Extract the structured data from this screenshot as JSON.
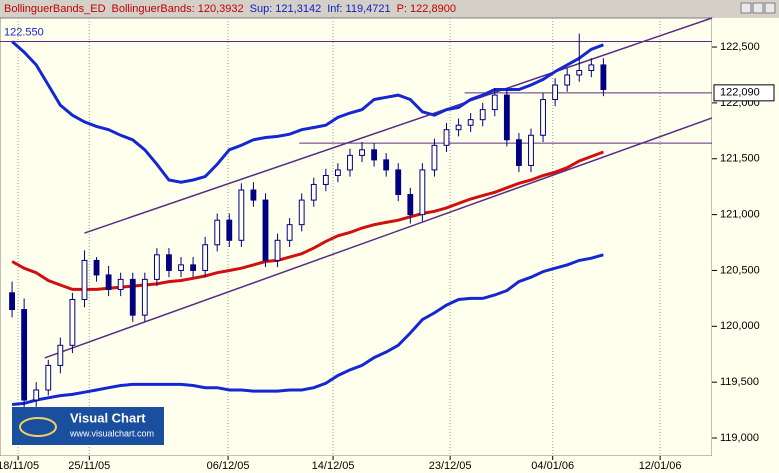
{
  "chart_data": {
    "type": "candlestick",
    "header": [
      {
        "text": "BollinguerBands_ED",
        "color": "#c00000"
      },
      {
        "text": "BollinguerBands: 120,3932",
        "color": "#c00000"
      },
      {
        "text": "Sup: 121,3142",
        "color": "#1020c0"
      },
      {
        "text": "Inf: 119,4721",
        "color": "#1020c0"
      },
      {
        "text": "P: 122,8900",
        "color": "#c00000"
      }
    ],
    "watermark": {
      "title": "Visual Chart",
      "url": "www.visualchart.com"
    },
    "x": [
      0,
      1,
      2,
      3,
      4,
      5,
      6,
      7,
      8,
      9,
      10,
      11,
      12,
      13,
      14,
      15,
      16,
      17,
      18,
      19,
      20,
      21,
      22,
      23,
      24,
      25,
      26,
      27,
      28,
      29,
      30,
      31,
      32,
      33,
      34,
      35,
      36,
      37,
      38,
      39,
      40,
      41,
      42,
      43,
      44,
      45,
      46,
      47,
      48,
      49
    ],
    "open": [
      120300,
      120150,
      119340,
      119430,
      119650,
      119830,
      120240,
      120590,
      120460,
      120330,
      120420,
      120100,
      120420,
      120640,
      120500,
      120550,
      120500,
      120730,
      120950,
      120770,
      121220,
      121130,
      120590,
      120770,
      120910,
      121130,
      121270,
      121350,
      121400,
      121530,
      121580,
      121490,
      121400,
      121180,
      121000,
      121400,
      121620,
      121760,
      121800,
      121850,
      121940,
      122070,
      121670,
      121440,
      121710,
      122030,
      122160,
      122250,
      122290,
      122340
    ],
    "high": [
      120400,
      120250,
      119500,
      119700,
      119900,
      120300,
      120680,
      120620,
      120540,
      120480,
      120480,
      120480,
      120700,
      120700,
      120620,
      120620,
      120800,
      121010,
      121010,
      121280,
      121290,
      121190,
      120830,
      120970,
      121190,
      121330,
      121410,
      121460,
      121590,
      121650,
      121640,
      121550,
      121460,
      121240,
      121460,
      121680,
      121820,
      121860,
      121910,
      122000,
      122130,
      122130,
      121730,
      121770,
      122090,
      122220,
      122310,
      122620,
      122400,
      122400
    ],
    "low": [
      120080,
      119270,
      119280,
      119380,
      119580,
      119760,
      120170,
      120400,
      120270,
      120270,
      120040,
      120040,
      120360,
      120440,
      120440,
      120440,
      120440,
      120670,
      120710,
      120710,
      121070,
      120530,
      120530,
      120710,
      120850,
      121070,
      121210,
      121290,
      121340,
      121470,
      121430,
      121340,
      121120,
      120920,
      120940,
      121340,
      121560,
      121700,
      121740,
      121790,
      121880,
      121610,
      121380,
      121380,
      121650,
      121970,
      122100,
      122190,
      122230,
      122060
    ],
    "close": [
      120150,
      119340,
      119430,
      119650,
      119830,
      120240,
      120590,
      120460,
      120330,
      120420,
      120100,
      120420,
      120640,
      120500,
      120550,
      120500,
      120730,
      120950,
      120770,
      121220,
      121130,
      120590,
      120770,
      120910,
      121130,
      121270,
      121350,
      121400,
      121530,
      121580,
      121490,
      121400,
      121180,
      121000,
      121400,
      121620,
      121760,
      121800,
      121850,
      121940,
      122070,
      121670,
      121440,
      121710,
      122030,
      122160,
      122250,
      122290,
      122340,
      122120
    ],
    "candle_color": "#000080",
    "overlays": [
      {
        "color": "#1428d2",
        "values": [
          122550,
          122455,
          122340,
          122160,
          121980,
          121890,
          121830,
          121790,
          121760,
          121710,
          121670,
          121580,
          121450,
          121310,
          121290,
          121310,
          121340,
          121450,
          121580,
          121620,
          121670,
          121690,
          121700,
          121720,
          121760,
          121780,
          121800,
          121870,
          121910,
          121940,
          122030,
          122050,
          122070,
          122030,
          121920,
          121890,
          121940,
          121960,
          122030,
          122070,
          122120,
          122120,
          122120,
          122160,
          122210,
          122280,
          122340,
          122400,
          122480,
          122520
        ]
      },
      {
        "color": "#1428d2",
        "values": [
          119300,
          119310,
          119340,
          119360,
          119380,
          119390,
          119410,
          119430,
          119450,
          119470,
          119480,
          119480,
          119480,
          119480,
          119480,
          119470,
          119450,
          119450,
          119430,
          119430,
          119420,
          119420,
          119420,
          119430,
          119430,
          119450,
          119490,
          119560,
          119610,
          119650,
          119720,
          119770,
          119830,
          119940,
          120060,
          120120,
          120190,
          120240,
          120250,
          120250,
          120280,
          120320,
          120400,
          120440,
          120490,
          120520,
          120550,
          120590,
          120610,
          120640
        ]
      },
      {
        "color": "#d01010",
        "values": [
          120580,
          120520,
          120480,
          120410,
          120370,
          120330,
          120330,
          120330,
          120340,
          120350,
          120360,
          120370,
          120380,
          120400,
          120410,
          120430,
          120450,
          120480,
          120500,
          120520,
          120550,
          120580,
          120590,
          120620,
          120650,
          120700,
          120760,
          120810,
          120840,
          120880,
          120910,
          120930,
          120950,
          120980,
          121010,
          121030,
          121060,
          121100,
          121140,
          121170,
          121200,
          121240,
          121280,
          121310,
          121350,
          121380,
          121420,
          121480,
          121520,
          121560
        ]
      }
    ],
    "trendlines": [
      {
        "color": "#5a2d82",
        "x": [
          6,
          58
        ],
        "values": [
          120835,
          122760
        ]
      },
      {
        "color": "#5a2d82",
        "x": [
          2.7,
          58
        ],
        "values": [
          119717,
          121865
        ]
      }
    ],
    "levels": [
      {
        "color": "#5a2d82",
        "x": [
          -1,
          58
        ],
        "value": 122550,
        "label": "122.550"
      },
      {
        "color": "#5a2d82",
        "x": [
          37.5,
          58
        ],
        "value": 122090,
        "label": "122,090"
      },
      {
        "color": "#5a2d82",
        "x": [
          23.8,
          58
        ],
        "value": 121640
      }
    ],
    "xlim": [
      -1,
      58
    ],
    "xticks": [
      {
        "value": 0.5,
        "label": "18/11/05"
      },
      {
        "value": 6.4,
        "label": "25/11/05"
      },
      {
        "value": 17.9,
        "label": "06/12/05"
      },
      {
        "value": 26.6,
        "label": "14/12/05"
      },
      {
        "value": 36.3,
        "label": "23/12/05"
      },
      {
        "value": 44.8,
        "label": "04/01/06"
      },
      {
        "value": 53.7,
        "label": "12/01/06"
      }
    ],
    "ylim": [
      118839,
      122760
    ],
    "yticks": [
      {
        "value": 119000,
        "label": "119,000"
      },
      {
        "value": 119500,
        "label": "119,500"
      },
      {
        "value": 120000,
        "label": "120,000"
      },
      {
        "value": 120500,
        "label": "120,500"
      },
      {
        "value": 121000,
        "label": "121,000"
      },
      {
        "value": 121500,
        "label": "121,500"
      },
      {
        "value": 122000,
        "label": "122,000"
      },
      {
        "value": 122500,
        "label": "122,500"
      }
    ],
    "grid": "x",
    "plot_background": "#ffffee"
  }
}
